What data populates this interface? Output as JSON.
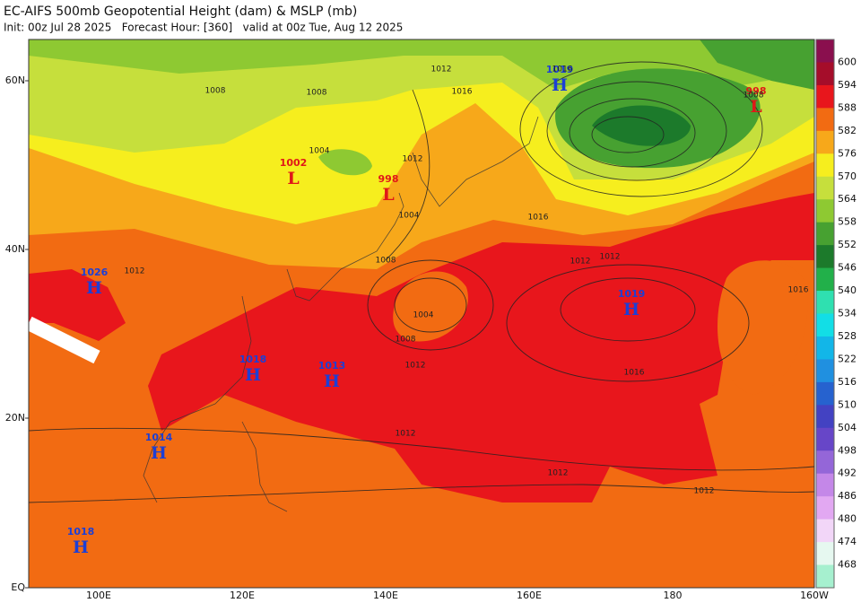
{
  "header": {
    "title": "EC-AIFS 500mb Geopotential Height (dam) & MSLP (mb)",
    "subtitle": "Init: 00z Jul 28 2025   Forecast Hour: [360]   valid at 00z Tue, Aug 12 2025"
  },
  "map": {
    "lat_labels": [
      "60N",
      "40N",
      "20N",
      "EQ"
    ],
    "lon_labels": [
      "100E",
      "120E",
      "140E",
      "160E",
      "180",
      "160W"
    ],
    "pressure_centers": [
      {
        "symbol": "H",
        "value": "1026"
      },
      {
        "symbol": "L",
        "value": "1002"
      },
      {
        "symbol": "L",
        "value": "998"
      },
      {
        "symbol": "H",
        "value": "1019"
      },
      {
        "symbol": "L",
        "value": "998"
      },
      {
        "symbol": "H",
        "value": "1019"
      },
      {
        "symbol": "H",
        "value": "1018"
      },
      {
        "symbol": "H",
        "value": "1013"
      },
      {
        "symbol": "H",
        "value": "1014"
      },
      {
        "symbol": "H",
        "value": "1018"
      }
    ],
    "isobar_labels": [
      "1012",
      "1016",
      "1016",
      "1008",
      "1008",
      "1004",
      "1012",
      "1004",
      "1008",
      "1016",
      "1012",
      "1012",
      "1004",
      "1008",
      "1012",
      "1016",
      "1016",
      "1012",
      "1012",
      "1012",
      "1008",
      "1012"
    ]
  },
  "colorbar": {
    "labels": [
      600,
      594,
      588,
      582,
      576,
      570,
      564,
      558,
      552,
      546,
      540,
      534,
      528,
      522,
      516,
      510,
      504,
      498,
      492,
      486,
      480,
      474,
      468
    ],
    "colors": [
      "#8a0f4e",
      "#a50d2a",
      "#e8161c",
      "#f26b12",
      "#f7a81a",
      "#f6ee1e",
      "#c6df3c",
      "#8ec932",
      "#47a131",
      "#1c7a2b",
      "#22b04a",
      "#2fe0b0",
      "#12dee6",
      "#12b6e8",
      "#2090e0",
      "#2662cf",
      "#4342c2",
      "#6746c8",
      "#9466d8",
      "#c487e8",
      "#e2a8f2",
      "#f2d6f8",
      "#e6f8f0",
      "#a6f0cf"
    ]
  }
}
